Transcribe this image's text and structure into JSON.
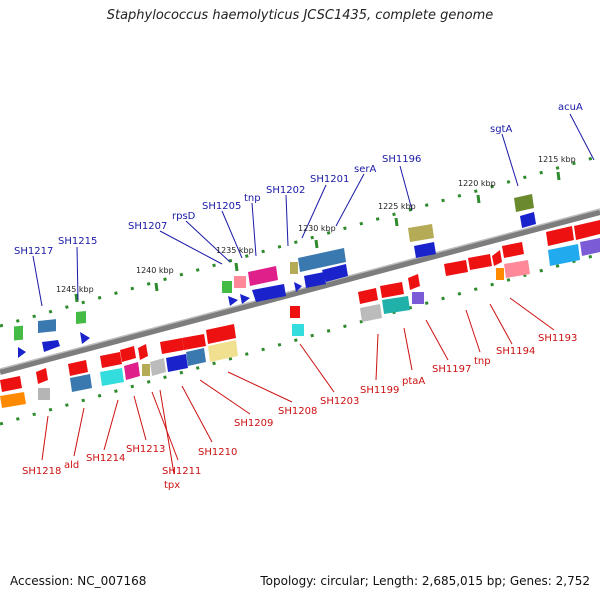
{
  "title": "Staphylococcus haemolyticus JCSC1435, complete genome",
  "accession": "Accession: NC_007168",
  "summary": "Topology: circular; Length: 2,685,015 bp; Genes: 2,752",
  "scale_labels": [
    "1245 kbp",
    "1240 kbp",
    "1235 kbp",
    "1230 kbp",
    "1225 kbp",
    "1220 kbp",
    "1215 kbp"
  ],
  "top_labels": [
    "SH1217",
    "SH1215",
    "SH1207",
    "rpsD",
    "SH1205",
    "tnp",
    "SH1202",
    "SH1201",
    "serA",
    "SH1196",
    "sgtA",
    "acuA"
  ],
  "bottom_labels": [
    "SH1218",
    "ald",
    "SH1214",
    "SH1213",
    "SH1211",
    "tpx",
    "SH1210",
    "SH1209",
    "SH1208",
    "SH1203",
    "SH1199",
    "ptaA",
    "SH1197",
    "tnp",
    "SH1194",
    "SH1193"
  ],
  "colors": {
    "top_label": "#1a1aa6",
    "bottom_label": "#cc1111",
    "backbone": "#7d7d7d",
    "ticks": "#2d8a2d"
  }
}
